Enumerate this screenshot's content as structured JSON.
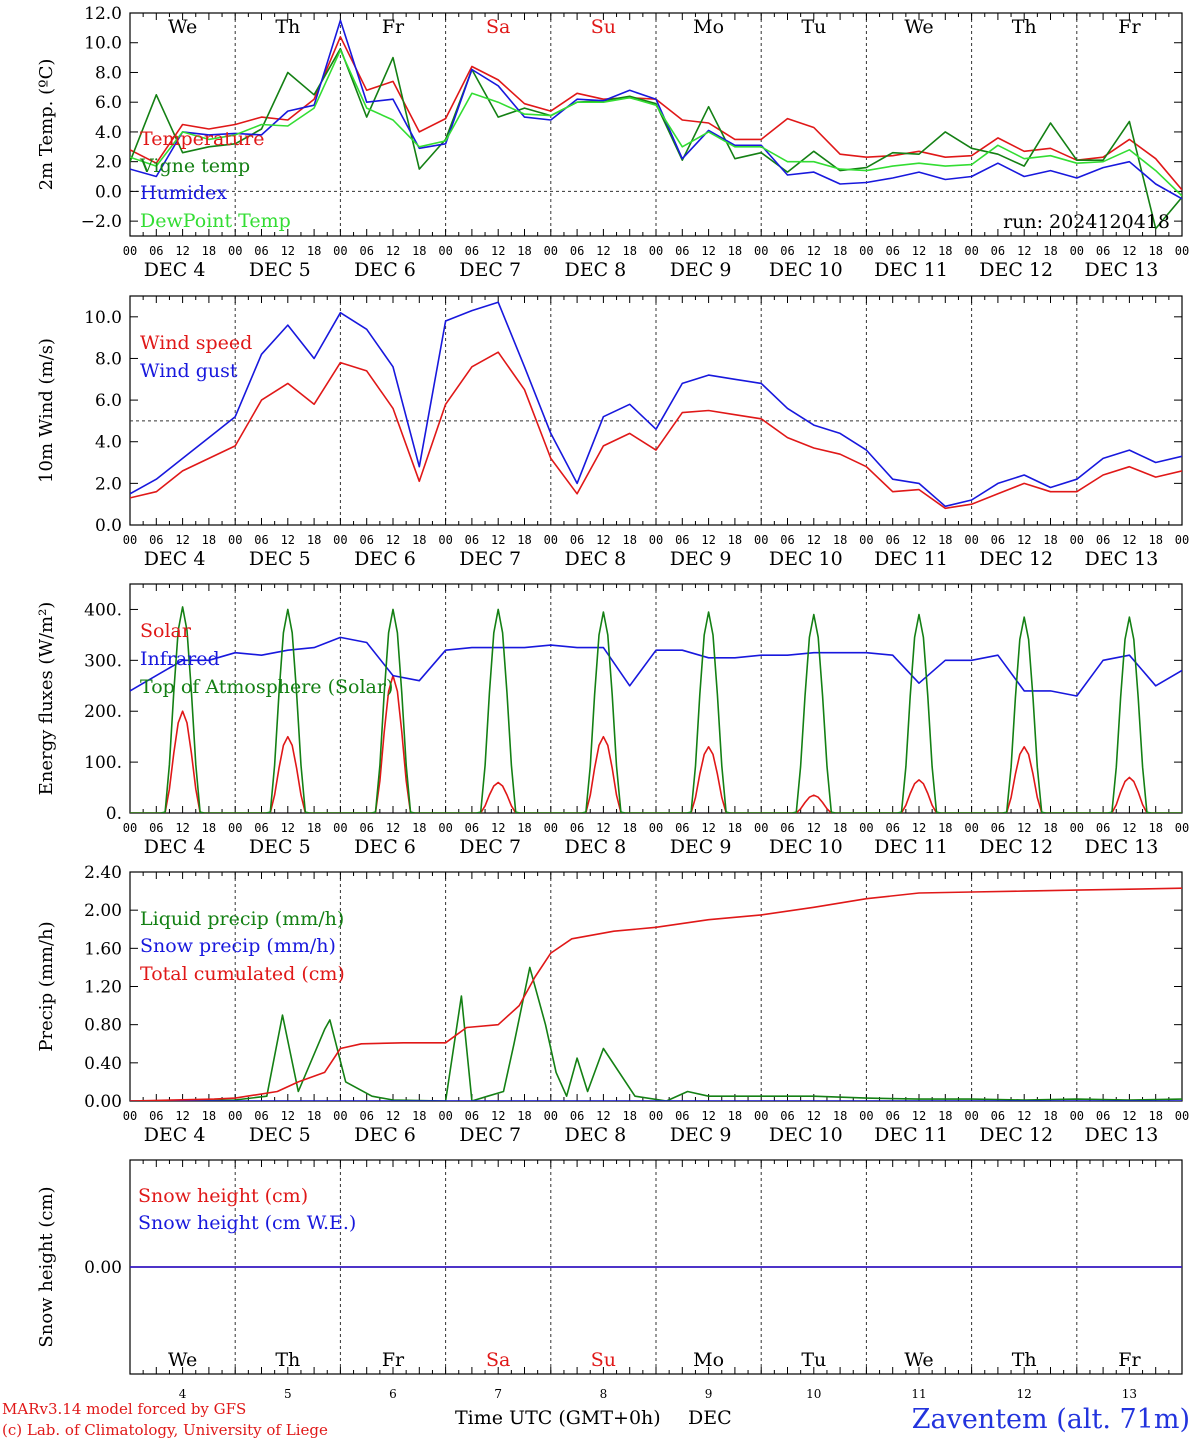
{
  "run_label": "run: 2024120418",
  "days": [
    "We",
    "Th",
    "Fr",
    "Sa",
    "Su",
    "Mo",
    "Tu",
    "We",
    "Th",
    "Fr"
  ],
  "weekend_indices": [
    3,
    4
  ],
  "dates": [
    "DEC  4",
    "DEC  5",
    "DEC  6",
    "DEC  7",
    "DEC  8",
    "DEC  9",
    "DEC 10",
    "DEC 11",
    "DEC 12",
    "DEC 13"
  ],
  "day_numbers": [
    "4",
    "5",
    "6",
    "7",
    "8",
    "9",
    "10",
    "11",
    "12",
    "13"
  ],
  "hour_ticks": [
    "00",
    "06",
    "12",
    "18"
  ],
  "hour_tick_end": "00",
  "footer": {
    "model_line": "MARv3.14 model forced by GFS",
    "lab_line": "(c) Lab. of Climatology, University of Liege",
    "xlabel": "Time UTC (GMT+0h)",
    "xlabel_unit": "DEC",
    "station": "Zaventem (alt. 71m)"
  },
  "colors": {
    "red": "#e01818",
    "green": "#148014",
    "blue": "#1818dd",
    "lightgreen": "#33dd33",
    "axis": "#000000",
    "station": "#2233dd"
  },
  "chart_data": [
    {
      "type": "line",
      "ylabel": "2m Temp. (ºC)",
      "ylim": [
        -3,
        12
      ],
      "yticks": [
        "12.0",
        "10.0",
        "8.0",
        "6.0",
        "4.0",
        "2.0",
        "0.0",
        "−2.0"
      ],
      "ytick_values": [
        12,
        10,
        8,
        6,
        4,
        2,
        0,
        -2
      ],
      "reference_line": 0,
      "x_unit": "days from DEC 4 00 UTC",
      "series": [
        {
          "name": "Temperature",
          "color": "red",
          "x": [
            0,
            0.25,
            0.5,
            0.75,
            1,
            1.25,
            1.5,
            1.75,
            2,
            2.25,
            2.5,
            2.75,
            3,
            3.25,
            3.5,
            3.75,
            4,
            4.25,
            4.5,
            4.75,
            5,
            5.25,
            5.5,
            5.75,
            6,
            6.25,
            6.5,
            6.75,
            7,
            7.25,
            7.5,
            7.75,
            8,
            8.25,
            8.5,
            8.75,
            9,
            9.25,
            9.5,
            9.75,
            10
          ],
          "y": [
            2.8,
            1.9,
            4.5,
            4.2,
            4.5,
            5,
            4.8,
            6.2,
            10.4,
            6.8,
            7.4,
            4,
            4.9,
            8.4,
            7.5,
            5.9,
            5.4,
            6.6,
            6.2,
            6.3,
            6.2,
            4.8,
            4.6,
            3.5,
            3.5,
            4.9,
            4.3,
            2.5,
            2.3,
            2.4,
            2.7,
            2.3,
            2.4,
            3.6,
            2.7,
            2.9,
            2.1,
            2.3,
            3.5,
            2.2,
            0.1
          ]
        },
        {
          "name": "Vigne temp",
          "color": "green",
          "x": [
            0,
            0.25,
            0.5,
            0.75,
            1,
            1.25,
            1.5,
            1.75,
            2,
            2.25,
            2.5,
            2.75,
            3,
            3.25,
            3.5,
            3.75,
            4,
            4.25,
            4.5,
            4.75,
            5,
            5.25,
            5.5,
            5.75,
            6,
            6.25,
            6.5,
            6.75,
            7,
            7.25,
            7.5,
            7.75,
            8,
            8.25,
            8.5,
            8.75,
            9,
            9.25,
            9.5,
            9.75,
            10
          ],
          "y": [
            2.0,
            6.5,
            2.6,
            3.0,
            3.2,
            4.2,
            8.0,
            6.5,
            9.6,
            5.0,
            9.0,
            1.5,
            3.5,
            8.2,
            5.0,
            5.6,
            5.1,
            6.0,
            6.1,
            6.4,
            5.9,
            2.1,
            5.7,
            2.2,
            2.6,
            1.3,
            2.7,
            1.4,
            1.6,
            2.6,
            2.5,
            4.0,
            2.9,
            2.5,
            1.7,
            4.6,
            2.1,
            2.1,
            4.7,
            -2.5,
            -0.4
          ]
        },
        {
          "name": "Humidex",
          "color": "blue",
          "x": [
            0,
            0.25,
            0.5,
            0.75,
            1,
            1.25,
            1.5,
            1.75,
            2,
            2.25,
            2.5,
            2.75,
            3,
            3.25,
            3.5,
            3.75,
            4,
            4.25,
            4.5,
            4.75,
            5,
            5.25,
            5.5,
            5.75,
            6,
            6.25,
            6.5,
            6.75,
            7,
            7.25,
            7.5,
            7.75,
            8,
            8.25,
            8.5,
            8.75,
            9,
            9.25,
            9.5,
            9.75,
            10
          ],
          "y": [
            1.5,
            1.0,
            4.0,
            3.8,
            3.9,
            3.8,
            5.4,
            5.8,
            11.5,
            6.0,
            6.2,
            2.9,
            3.2,
            8.2,
            7.1,
            5.0,
            4.8,
            6.2,
            6.1,
            6.8,
            6.2,
            2.2,
            4.1,
            3.1,
            3.1,
            1.1,
            1.3,
            0.5,
            0.6,
            0.9,
            1.3,
            0.8,
            1.0,
            1.9,
            1.0,
            1.4,
            0.9,
            1.6,
            2.0,
            0.5,
            -0.5
          ]
        },
        {
          "name": "DewPoint Temp",
          "color": "lightgreen",
          "x": [
            0,
            0.25,
            0.5,
            0.75,
            1,
            1.25,
            1.5,
            1.75,
            2,
            2.25,
            2.5,
            2.75,
            3,
            3.25,
            3.5,
            3.75,
            4,
            4.25,
            4.5,
            4.75,
            5,
            5.25,
            5.5,
            5.75,
            6,
            6.25,
            6.5,
            6.75,
            7,
            7.25,
            7.5,
            7.75,
            8,
            8.25,
            8.5,
            8.75,
            9,
            9.25,
            9.5,
            9.75,
            10
          ],
          "y": [
            2.3,
            1.7,
            4.0,
            3.5,
            3.8,
            4.5,
            4.4,
            5.6,
            9.5,
            5.6,
            4.8,
            3.0,
            3.4,
            6.6,
            6.0,
            5.2,
            5.1,
            6.0,
            6.0,
            6.3,
            5.8,
            3.0,
            4.0,
            3.0,
            3.0,
            2.0,
            2.0,
            1.5,
            1.4,
            1.7,
            1.9,
            1.7,
            1.8,
            3.1,
            2.2,
            2.4,
            1.9,
            2.0,
            2.8,
            1.4,
            -0.3
          ]
        }
      ]
    },
    {
      "type": "line",
      "ylabel": "10m Wind (m/s)",
      "ylim": [
        0,
        11
      ],
      "yticks": [
        "10.0",
        "8.0",
        "6.0",
        "4.0",
        "2.0",
        "0.0"
      ],
      "ytick_values": [
        10,
        8,
        6,
        4,
        2,
        0
      ],
      "reference_line": 5,
      "x_unit": "days from DEC 4 00 UTC",
      "series": [
        {
          "name": "Wind speed",
          "color": "red",
          "x": [
            0,
            0.25,
            0.5,
            0.75,
            1,
            1.25,
            1.5,
            1.75,
            2,
            2.25,
            2.5,
            2.75,
            3,
            3.25,
            3.5,
            3.75,
            4,
            4.25,
            4.5,
            4.75,
            5,
            5.25,
            5.5,
            5.75,
            6,
            6.25,
            6.5,
            6.75,
            7,
            7.25,
            7.5,
            7.75,
            8,
            8.25,
            8.5,
            8.75,
            9,
            9.25,
            9.5,
            9.75,
            10
          ],
          "y": [
            1.3,
            1.6,
            2.6,
            3.2,
            3.8,
            6.0,
            6.8,
            5.8,
            7.8,
            7.4,
            5.6,
            2.1,
            5.8,
            7.6,
            8.3,
            6.5,
            3.2,
            1.5,
            3.8,
            4.4,
            3.6,
            5.4,
            5.5,
            5.3,
            5.1,
            4.2,
            3.7,
            3.4,
            2.8,
            1.6,
            1.7,
            0.8,
            1.0,
            1.5,
            2.0,
            1.6,
            1.6,
            2.4,
            2.8,
            2.3,
            2.6
          ]
        },
        {
          "name": "Wind gust",
          "color": "blue",
          "x": [
            0,
            0.25,
            0.5,
            0.75,
            1,
            1.25,
            1.5,
            1.75,
            2,
            2.25,
            2.5,
            2.75,
            3,
            3.25,
            3.5,
            3.75,
            4,
            4.25,
            4.5,
            4.75,
            5,
            5.25,
            5.5,
            5.75,
            6,
            6.25,
            6.5,
            6.75,
            7,
            7.25,
            7.5,
            7.75,
            8,
            8.25,
            8.5,
            8.75,
            9,
            9.25,
            9.5,
            9.75,
            10
          ],
          "y": [
            1.5,
            2.2,
            3.2,
            4.2,
            5.2,
            8.2,
            9.6,
            8.0,
            10.2,
            9.4,
            7.6,
            2.8,
            9.8,
            10.3,
            10.7,
            7.6,
            4.4,
            2.0,
            5.2,
            5.8,
            4.6,
            6.8,
            7.2,
            7.0,
            6.8,
            5.6,
            4.8,
            4.4,
            3.6,
            2.2,
            2.0,
            0.9,
            1.2,
            2.0,
            2.4,
            1.8,
            2.2,
            3.2,
            3.6,
            3.0,
            3.3
          ]
        }
      ]
    },
    {
      "type": "line",
      "ylabel": "Energy fluxes (W/m²)",
      "ylim": [
        0,
        450
      ],
      "yticks": [
        "400.",
        "300.",
        "200.",
        "100.",
        "0."
      ],
      "ytick_values": [
        400,
        300,
        200,
        100,
        0
      ],
      "x_unit": "days from DEC 4 00 UTC",
      "series": [
        {
          "name": "Solar",
          "color": "red",
          "day_peaks": [
            200,
            150,
            270,
            60,
            150,
            130,
            35,
            65,
            130,
            70
          ]
        },
        {
          "name": "Infrared",
          "color": "blue",
          "x": [
            0,
            0.25,
            0.5,
            0.75,
            1,
            1.25,
            1.5,
            1.75,
            2,
            2.25,
            2.5,
            2.75,
            3,
            3.25,
            3.5,
            3.75,
            4,
            4.25,
            4.5,
            4.75,
            5,
            5.25,
            5.5,
            5.75,
            6,
            6.25,
            6.5,
            6.75,
            7,
            7.25,
            7.5,
            7.75,
            8,
            8.25,
            8.5,
            8.75,
            9,
            9.25,
            9.5,
            9.75,
            10
          ],
          "y": [
            240,
            270,
            300,
            300,
            315,
            310,
            320,
            325,
            345,
            335,
            270,
            260,
            320,
            325,
            325,
            325,
            330,
            325,
            325,
            250,
            320,
            320,
            305,
            305,
            310,
            310,
            315,
            315,
            315,
            310,
            255,
            300,
            300,
            310,
            240,
            240,
            230,
            300,
            310,
            250,
            280
          ]
        },
        {
          "name": "Top of Atmosphere (Solar)",
          "color": "green",
          "day_peaks": [
            405,
            400,
            400,
            400,
            395,
            395,
            390,
            390,
            385,
            385
          ]
        }
      ]
    },
    {
      "type": "line",
      "ylabel": "Precip (mm/h)",
      "ylim": [
        0,
        2.4
      ],
      "yticks": [
        "2.40",
        "2.00",
        "1.60",
        "1.20",
        "0.80",
        "0.40",
        "0.00"
      ],
      "ytick_values": [
        2.4,
        2.0,
        1.6,
        1.2,
        0.8,
        0.4,
        0.0
      ],
      "x_unit": "days from DEC 4 00 UTC",
      "series": [
        {
          "name": "Liquid precip (mm/h)",
          "color": "green",
          "x": [
            0,
            0.5,
            1,
            1.3,
            1.45,
            1.6,
            1.85,
            1.9,
            2.05,
            2.3,
            2.5,
            3.0,
            3.15,
            3.25,
            3.4,
            3.55,
            3.65,
            3.8,
            3.95,
            4.05,
            4.15,
            4.25,
            4.35,
            4.5,
            4.8,
            5.1,
            5.3,
            5.5,
            6,
            6.5,
            7,
            7.5,
            8,
            8.5,
            9,
            9.5,
            10
          ],
          "y": [
            0,
            0,
            0.01,
            0.05,
            0.9,
            0.1,
            0.75,
            0.85,
            0.2,
            0.05,
            0.01,
            0,
            1.1,
            0,
            0.05,
            0.1,
            0.6,
            1.4,
            0.8,
            0.3,
            0.05,
            0.45,
            0.1,
            0.55,
            0.05,
            0,
            0.1,
            0.05,
            0.05,
            0.05,
            0.03,
            0.02,
            0.02,
            0.01,
            0.02,
            0.01,
            0.02
          ]
        },
        {
          "name": "Snow precip (mm/h)",
          "color": "blue",
          "x": [
            0,
            10
          ],
          "y": [
            0,
            0
          ]
        },
        {
          "name": "Total cumulated (cm)",
          "color": "red",
          "x": [
            0,
            0.8,
            1,
            1.4,
            1.6,
            1.85,
            2.0,
            2.2,
            2.6,
            3.0,
            3.2,
            3.5,
            3.7,
            3.85,
            4.0,
            4.2,
            4.6,
            5.0,
            5.5,
            6.0,
            6.5,
            7.0,
            7.5,
            8.0,
            8.5,
            9.0,
            9.5,
            10
          ],
          "y": [
            0,
            0.02,
            0.03,
            0.1,
            0.2,
            0.3,
            0.55,
            0.6,
            0.61,
            0.61,
            0.77,
            0.8,
            1.0,
            1.3,
            1.55,
            1.7,
            1.78,
            1.82,
            1.9,
            1.95,
            2.03,
            2.12,
            2.18,
            2.19,
            2.2,
            2.21,
            2.22,
            2.23
          ]
        }
      ]
    },
    {
      "type": "line",
      "ylabel": "Snow height (cm)",
      "yticks": [
        "0.00"
      ],
      "ytick_values": [
        0
      ],
      "x_unit": "days from DEC 4 00 UTC",
      "series": [
        {
          "name": "Snow height (cm)",
          "color": "red",
          "x": [
            0,
            10
          ],
          "y": [
            0,
            0
          ]
        },
        {
          "name": "Snow height (cm W.E.)",
          "color": "blue",
          "x": [
            0,
            10
          ],
          "y": [
            0,
            0
          ]
        }
      ]
    }
  ]
}
